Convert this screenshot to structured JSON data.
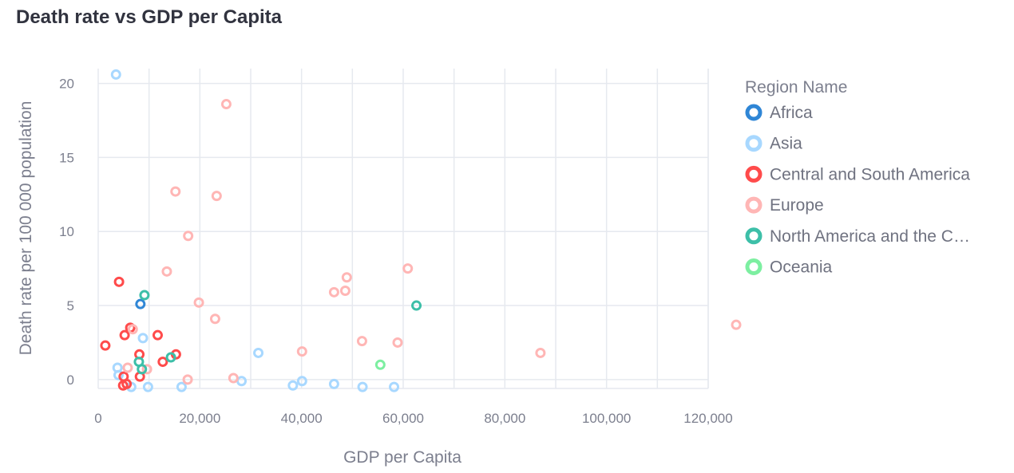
{
  "chart_data": {
    "type": "scatter",
    "title": "Death rate vs GDP per Capita",
    "xlabel": "GDP per Capita",
    "ylabel": "Death rate per 100 000 population",
    "xlim": [
      0,
      120000
    ],
    "ylim": [
      -0.6,
      21
    ],
    "x_ticks": [
      0,
      20000,
      40000,
      60000,
      80000,
      100000,
      120000
    ],
    "x_tick_labels": [
      "0",
      "20,000",
      "40,000",
      "60,000",
      "80,000",
      "100,000",
      "120,000"
    ],
    "y_ticks": [
      0,
      5,
      10,
      15,
      20
    ],
    "y_tick_labels": [
      "0",
      "5",
      "10",
      "15",
      "20"
    ],
    "grid": true,
    "legend": {
      "title": "Region Name",
      "placement": "right"
    },
    "series": [
      {
        "name": "Africa",
        "color": "#2f86d6",
        "points": [
          [
            8300,
            5.1
          ]
        ]
      },
      {
        "name": "Asia",
        "color": "#a8d8ff",
        "points": [
          [
            3500,
            20.6
          ],
          [
            3800,
            0.8
          ],
          [
            4000,
            0.3
          ],
          [
            6500,
            -0.5
          ],
          [
            8800,
            2.8
          ],
          [
            9800,
            -0.5
          ],
          [
            16400,
            -0.5
          ],
          [
            28200,
            -0.1
          ],
          [
            31500,
            1.8
          ],
          [
            38300,
            -0.4
          ],
          [
            40100,
            -0.1
          ],
          [
            46400,
            -0.3
          ],
          [
            52000,
            -0.5
          ],
          [
            58200,
            -0.5
          ]
        ]
      },
      {
        "name": "Central and South America",
        "color": "#ff4b4b",
        "points": [
          [
            1400,
            2.3
          ],
          [
            4100,
            6.6
          ],
          [
            4900,
            -0.4
          ],
          [
            5000,
            0.2
          ],
          [
            5200,
            3.0
          ],
          [
            5600,
            -0.3
          ],
          [
            6300,
            3.5
          ],
          [
            8100,
            1.7
          ],
          [
            8200,
            0.2
          ],
          [
            11700,
            3.0
          ],
          [
            12700,
            1.2
          ],
          [
            15300,
            1.7
          ]
        ]
      },
      {
        "name": "Europe",
        "color": "#ffb6b5",
        "points": [
          [
            5800,
            0.8
          ],
          [
            6800,
            3.4
          ],
          [
            9600,
            0.7
          ],
          [
            13500,
            7.3
          ],
          [
            15200,
            12.7
          ],
          [
            17600,
            0.0
          ],
          [
            17700,
            9.7
          ],
          [
            19800,
            5.2
          ],
          [
            23000,
            4.1
          ],
          [
            23300,
            12.4
          ],
          [
            25200,
            18.6
          ],
          [
            26600,
            0.1
          ],
          [
            40100,
            1.9
          ],
          [
            46400,
            5.9
          ],
          [
            48600,
            6.0
          ],
          [
            48900,
            6.9
          ],
          [
            51900,
            2.6
          ],
          [
            58900,
            2.5
          ],
          [
            60900,
            7.5
          ],
          [
            87000,
            1.8
          ],
          [
            125500,
            3.7
          ]
        ]
      },
      {
        "name": "North America and the C…",
        "color": "#3dbfa8",
        "points": [
          [
            8000,
            1.2
          ],
          [
            8600,
            0.7
          ],
          [
            9100,
            5.7
          ],
          [
            14300,
            1.5
          ],
          [
            62600,
            5.0
          ]
        ]
      },
      {
        "name": "Oceania",
        "color": "#7defa1",
        "points": [
          [
            55500,
            1.0
          ]
        ]
      }
    ]
  }
}
